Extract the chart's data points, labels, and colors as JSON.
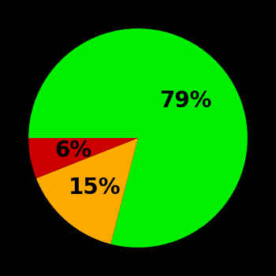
{
  "slices": [
    79,
    15,
    6
  ],
  "colors": [
    "#00ee00",
    "#ffaa00",
    "#cc0000"
  ],
  "labels": [
    "79%",
    "15%",
    "6%"
  ],
  "background_color": "#000000",
  "startangle": 180,
  "figsize": [
    3.5,
    3.5
  ],
  "dpi": 100,
  "label_fontsize": 20,
  "label_fontweight": "bold",
  "label_radii": [
    0.55,
    0.6,
    0.6
  ]
}
